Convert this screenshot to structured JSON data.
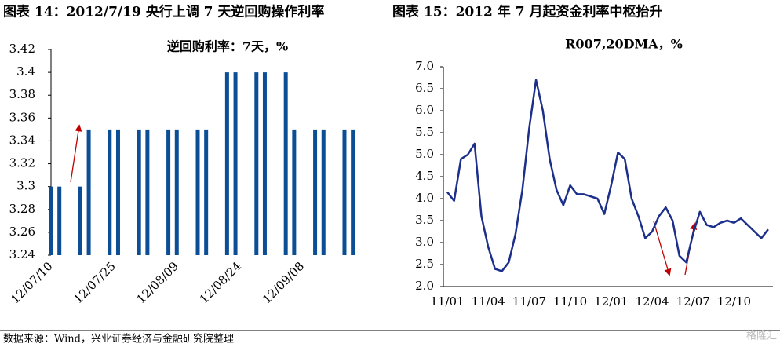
{
  "header": {
    "left": "图表 14：2012/7/19 央行上调 7 天逆回购操作利率",
    "right": "图表 15：2012 年 7 月起资金利率中枢抬升"
  },
  "chart_data": [
    {
      "type": "bar",
      "title": "逆回购利率：7天，%",
      "color": "#0b4e96",
      "x": [
        "12/07/10",
        "12/07/12",
        "12/07/17",
        "12/07/19",
        "12/07/24",
        "12/07/26",
        "12/07/31",
        "12/08/02",
        "12/08/07",
        "12/08/09",
        "12/08/14",
        "12/08/16",
        "12/08/21",
        "12/08/23",
        "12/08/28",
        "12/08/30",
        "12/09/04",
        "12/09/06",
        "12/09/11",
        "12/09/13",
        "12/09/18",
        "12/09/20"
      ],
      "values": [
        3.3,
        3.3,
        3.3,
        3.35,
        3.35,
        3.35,
        3.35,
        3.35,
        3.35,
        3.35,
        3.35,
        3.35,
        3.4,
        3.4,
        3.4,
        3.4,
        3.4,
        3.35,
        3.35,
        3.35,
        3.35,
        3.35
      ],
      "xlim": [
        "12/07/10",
        "12/09/21"
      ],
      "xticks": [
        "12/07/10",
        "12/07/25",
        "12/08/09",
        "12/08/24",
        "12/09/08"
      ],
      "ylim": [
        3.24,
        3.42
      ],
      "yticks": [
        3.24,
        3.26,
        3.28,
        3.3,
        3.32,
        3.34,
        3.36,
        3.38,
        3.4,
        3.42
      ]
    },
    {
      "type": "line",
      "title": "R007,20DMA，%",
      "color": "#1c2f8a",
      "categories": [
        "11/01",
        null,
        null,
        null,
        null,
        null,
        "11/04",
        null,
        null,
        null,
        null,
        null,
        "11/07",
        null,
        null,
        null,
        null,
        null,
        "11/10",
        null,
        null,
        null,
        null,
        null,
        "12/01",
        null,
        null,
        null,
        null,
        null,
        "12/04",
        null,
        null,
        null,
        null,
        null,
        "12/07",
        null,
        null,
        null,
        null,
        null,
        "12/10",
        null,
        null,
        null,
        null,
        null
      ],
      "values": [
        4.15,
        3.95,
        4.9,
        5.0,
        5.25,
        3.6,
        2.9,
        2.4,
        2.35,
        2.55,
        3.2,
        4.2,
        5.6,
        6.7,
        6.0,
        4.9,
        4.2,
        3.85,
        4.3,
        4.1,
        4.1,
        4.05,
        4.0,
        3.65,
        4.3,
        5.05,
        4.9,
        4.0,
        3.6,
        3.1,
        3.25,
        3.6,
        3.8,
        3.5,
        2.7,
        2.55,
        3.2,
        3.7,
        3.4,
        3.35,
        3.45,
        3.5,
        3.45,
        3.55,
        3.4,
        3.25,
        3.1,
        3.3
      ],
      "ylim": [
        2,
        7
      ],
      "yticks": [
        {
          "value": 2,
          "label": "2.0"
        },
        2.5,
        {
          "value": 3,
          "label": "3.0"
        },
        3.5,
        {
          "value": 4,
          "label": "4.0"
        },
        4.5,
        {
          "value": 5,
          "label": "5.0"
        },
        5.5,
        {
          "value": 6,
          "label": "6.0"
        },
        6.5,
        {
          "value": 7,
          "label": "7.0"
        }
      ]
    }
  ],
  "source": "数据来源：Wind，兴业证券经济与金融研究院整理",
  "watermark": "格隆汇"
}
